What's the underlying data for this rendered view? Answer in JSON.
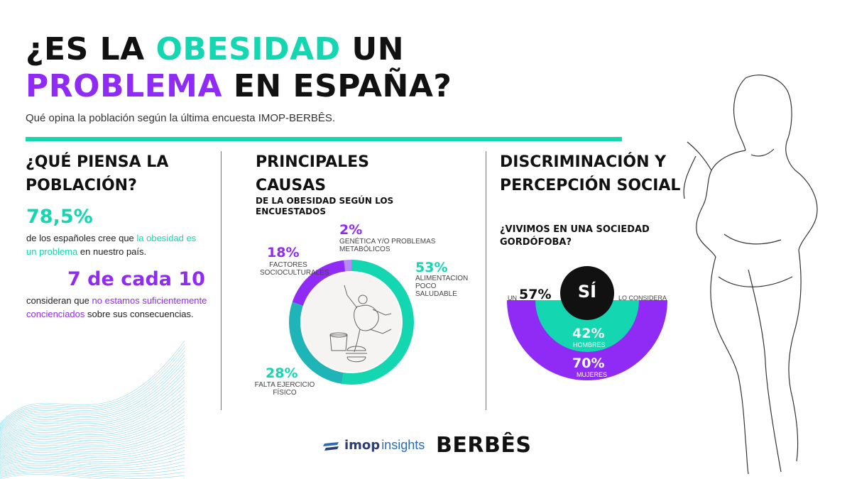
{
  "title": {
    "line1_pre": "¿ES LA ",
    "line1_hl": "OBESIDAD",
    "line1_post": " UN",
    "line2_hl": "PROBLEMA",
    "line2_post": " EN ESPAÑA?"
  },
  "subtitle": "Qué opina la población según la última encuesta IMOP-BERBÊS.",
  "section1": {
    "title": "¿QUÉ PIENSA LA POBLACIÓN?",
    "stat1_value": "78,5%",
    "stat1_text_pre": "de los españoles cree que ",
    "stat1_text_hl": "la obesidad es un problema",
    "stat1_text_post": " en nuestro país.",
    "stat2_value": "7 de cada 10",
    "stat2_text_pre": "consideran que ",
    "stat2_text_hl": "no estamos suficientemente concienciados",
    "stat2_text_post": " sobre sus consecuencias."
  },
  "section2": {
    "title": "PRINCIPALES CAUSAS",
    "subtitle": "DE LA OBESIDAD SEGÚN LOS ENCUESTADOS"
  },
  "chart_data": {
    "type": "pie",
    "slices": [
      {
        "label": "ALIMENTACION POCO SALUDABLE",
        "value": 53,
        "value_label": "53%",
        "color": "#14d6b0"
      },
      {
        "label": "FALTA EJERCICIO FÍSICO",
        "value": 28,
        "value_label": "28%",
        "color": "#1fb5b8"
      },
      {
        "label": "FACTORES SOCIOCULTURALES",
        "value": 18,
        "value_label": "18%",
        "color": "#8f2bf5"
      },
      {
        "label": "GENÉTICA Y/O PROBLEMAS METABÓLICOS",
        "value": 2,
        "value_label": "2%",
        "color": "#b88af5"
      }
    ]
  },
  "section3": {
    "title": "DISCRIMINACIÓN Y PERCEPCIÓN SOCIAL",
    "subtitle": "¿VIVIMOS EN UNA SOCIEDAD GORDÓFOBA?",
    "center_label": "SÍ",
    "overall_pre": "UN",
    "overall_value": "57%",
    "overall_post": "LO CONSIDERA",
    "men_value": "42%",
    "men_label": "HOMBRES",
    "women_value": "70%",
    "women_label": "MUJERES"
  },
  "footer": {
    "imop_bold": "imop",
    "imop_light": "insights",
    "berbes": "BERBÊS"
  },
  "colors": {
    "teal": "#14d6b0",
    "purple": "#8f2bf5",
    "dark_teal": "#1fb5b8"
  }
}
